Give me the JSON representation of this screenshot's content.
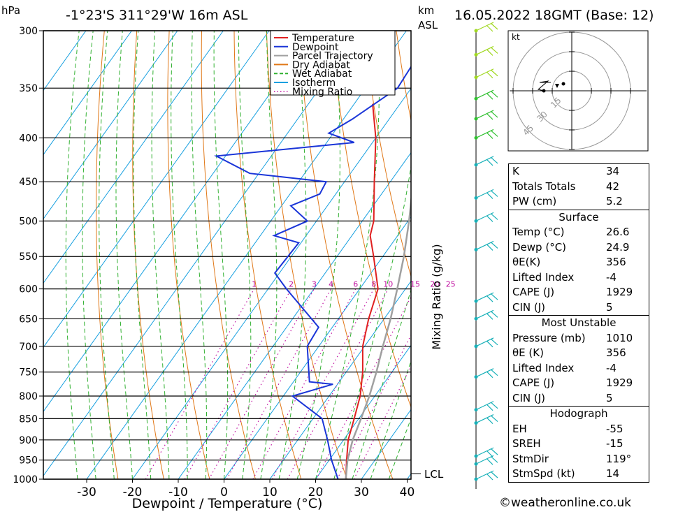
{
  "header": {
    "location": "-1°23'S 311°29'W 16m ASL",
    "datetime": "16.05.2022 18GMT (Base: 12)",
    "left_unit": "hPa",
    "right_unit_km": "km",
    "right_unit_asl": "ASL"
  },
  "chart_data": {
    "type": "line",
    "xlabel": "Dewpoint / Temperature (°C)",
    "ylabel_right": "Mixing Ratio (g/kg)",
    "xlim": [
      -40,
      40
    ],
    "pressure_levels": [
      300,
      350,
      400,
      450,
      500,
      550,
      600,
      650,
      700,
      750,
      800,
      850,
      900,
      950,
      1000
    ],
    "x_ticks": [
      -30,
      -20,
      -10,
      0,
      10,
      20,
      30,
      40
    ],
    "mixing_ratio_labels": [
      "1",
      "2",
      "3",
      "4",
      "6",
      "8",
      "10",
      "15",
      "20",
      "25"
    ],
    "lcl_label": "LCL",
    "legend": [
      "Temperature",
      "Dewpoint",
      "Parcel Trajectory",
      "Dry Adiabat",
      "Wet Adiabat",
      "Isotherm",
      "Mixing Ratio"
    ],
    "colors": {
      "temperature": "#e02020",
      "dewpoint": "#1a35d8",
      "parcel": "#a0a0a0",
      "dry_adiabat": "#e07818",
      "wet_adiabat": "#30b030",
      "isotherm": "#18a0e0",
      "mixing_ratio": "#c010a0"
    },
    "series": [
      {
        "name": "Temperature",
        "points": [
          {
            "p": 1000,
            "t": 26.6
          },
          {
            "p": 950,
            "t": 23.8
          },
          {
            "p": 900,
            "t": 21.0
          },
          {
            "p": 850,
            "t": 19.0
          },
          {
            "p": 800,
            "t": 16.8
          },
          {
            "p": 750,
            "t": 13.6
          },
          {
            "p": 700,
            "t": 9.6
          },
          {
            "p": 650,
            "t": 6.6
          },
          {
            "p": 600,
            "t": 4.0
          },
          {
            "p": 550,
            "t": -2.0
          },
          {
            "p": 520,
            "t": -6.0
          },
          {
            "p": 500,
            "t": -7.5
          },
          {
            "p": 450,
            "t": -13.5
          },
          {
            "p": 400,
            "t": -20.0
          },
          {
            "p": 365,
            "t": -26.0
          }
        ]
      },
      {
        "name": "Dewpoint",
        "points": [
          {
            "p": 1000,
            "t": 24.9
          },
          {
            "p": 950,
            "t": 20.5
          },
          {
            "p": 900,
            "t": 16.5
          },
          {
            "p": 850,
            "t": 12.0
          },
          {
            "p": 800,
            "t": 2.0
          },
          {
            "p": 775,
            "t": 9.0
          },
          {
            "p": 770,
            "t": 3.5
          },
          {
            "p": 700,
            "t": -2.5
          },
          {
            "p": 665,
            "t": -3.0
          },
          {
            "p": 600,
            "t": -16.0
          },
          {
            "p": 575,
            "t": -21.0
          },
          {
            "p": 530,
            "t": -20.5
          },
          {
            "p": 520,
            "t": -27.0
          },
          {
            "p": 500,
            "t": -22.0
          },
          {
            "p": 480,
            "t": -28.0
          },
          {
            "p": 465,
            "t": -23.5
          },
          {
            "p": 450,
            "t": -24.0
          },
          {
            "p": 440,
            "t": -42.0
          },
          {
            "p": 420,
            "t": -52.0
          },
          {
            "p": 405,
            "t": -24.0
          },
          {
            "p": 395,
            "t": -31.0
          },
          {
            "p": 380,
            "t": -28.0
          },
          {
            "p": 350,
            "t": -23.0
          },
          {
            "p": 300,
            "t": -24.0
          }
        ]
      },
      {
        "name": "Parcel Trajectory",
        "points": [
          {
            "p": 1000,
            "t": 26.6
          },
          {
            "p": 950,
            "t": 24.0
          },
          {
            "p": 900,
            "t": 22.0
          },
          {
            "p": 850,
            "t": 20.5
          },
          {
            "p": 800,
            "t": 18.8
          },
          {
            "p": 750,
            "t": 16.6
          },
          {
            "p": 700,
            "t": 14.0
          },
          {
            "p": 650,
            "t": 11.4
          },
          {
            "p": 600,
            "t": 8.2
          },
          {
            "p": 550,
            "t": 4.6
          },
          {
            "p": 500,
            "t": 0.2
          },
          {
            "p": 450,
            "t": -5.0
          },
          {
            "p": 400,
            "t": -11.0
          },
          {
            "p": 365,
            "t": -16.5
          }
        ]
      }
    ],
    "wind_profile_levels": [
      300,
      320,
      340,
      360,
      380,
      400,
      430,
      470,
      500,
      540,
      620,
      650,
      700,
      760,
      830,
      860,
      940,
      960,
      1000
    ]
  },
  "hodograph": {
    "unit": "kt",
    "ring_labels": [
      "15",
      "30",
      "45"
    ]
  },
  "indices": {
    "top": [
      {
        "label": "K",
        "value": "34"
      },
      {
        "label": "Totals Totals",
        "value": "42"
      },
      {
        "label": "PW (cm)",
        "value": "5.2"
      }
    ],
    "surface": {
      "title": "Surface",
      "rows": [
        {
          "label": "Temp (°C)",
          "value": "26.6"
        },
        {
          "label": "Dewp (°C)",
          "value": "24.9"
        },
        {
          "label": "θE(K)",
          "value": "356"
        },
        {
          "label": "Lifted Index",
          "value": "-4"
        },
        {
          "label": "CAPE (J)",
          "value": "1929"
        },
        {
          "label": "CIN (J)",
          "value": "5"
        }
      ]
    },
    "most_unstable": {
      "title": "Most Unstable",
      "rows": [
        {
          "label": "Pressure (mb)",
          "value": "1010"
        },
        {
          "label": "θE (K)",
          "value": "356"
        },
        {
          "label": "Lifted Index",
          "value": "-4"
        },
        {
          "label": "CAPE (J)",
          "value": "1929"
        },
        {
          "label": "CIN (J)",
          "value": "5"
        }
      ]
    },
    "hodograph": {
      "title": "Hodograph",
      "rows": [
        {
          "label": "EH",
          "value": "-55"
        },
        {
          "label": "SREH",
          "value": "-15"
        },
        {
          "label": "StmDir",
          "value": "119°"
        },
        {
          "label": "StmSpd (kt)",
          "value": "14"
        }
      ]
    }
  },
  "footer": {
    "copyright": "©weatheronline.co.uk"
  }
}
